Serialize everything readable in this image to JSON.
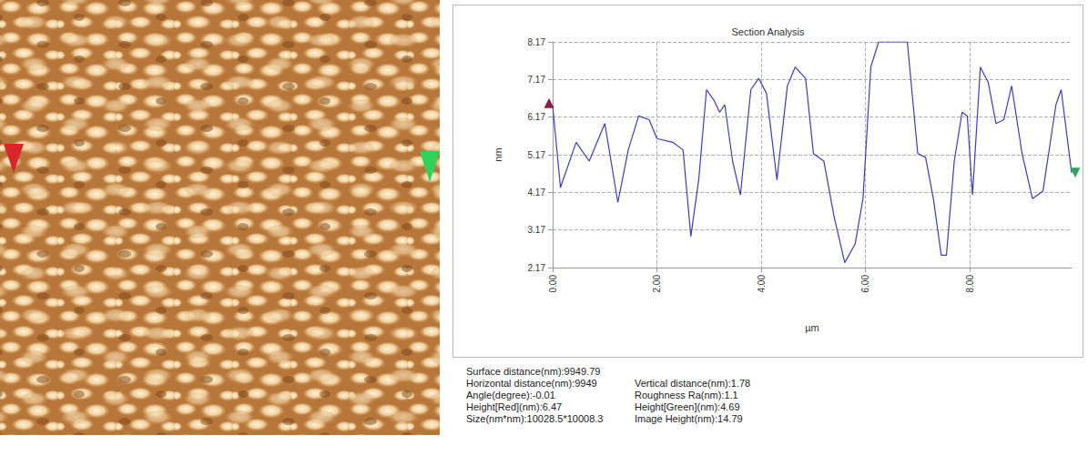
{
  "chart_data": {
    "type": "line",
    "title": "Section Analysis",
    "x_label": "µm",
    "y_label": "nm",
    "x": [
      0,
      0.15,
      0.45,
      0.7,
      1.0,
      1.25,
      1.45,
      1.65,
      1.85,
      2.0,
      2.3,
      2.5,
      2.65,
      2.8,
      2.95,
      3.1,
      3.2,
      3.3,
      3.45,
      3.6,
      3.8,
      3.95,
      4.1,
      4.3,
      4.5,
      4.65,
      4.85,
      5.0,
      5.2,
      5.4,
      5.6,
      5.8,
      5.95,
      6.1,
      6.25,
      6.8,
      7.0,
      7.15,
      7.3,
      7.45,
      7.55,
      7.7,
      7.85,
      7.95,
      8.05,
      8.2,
      8.35,
      8.5,
      8.65,
      8.8,
      9.0,
      9.2,
      9.4,
      9.65,
      9.75,
      9.95
    ],
    "values": [
      6.47,
      4.3,
      5.5,
      5.0,
      6.0,
      3.9,
      5.3,
      6.2,
      6.1,
      5.6,
      5.5,
      5.3,
      3.0,
      4.5,
      6.9,
      6.6,
      6.3,
      6.5,
      5.0,
      4.1,
      6.9,
      7.2,
      6.8,
      4.5,
      7.0,
      7.5,
      7.2,
      5.2,
      5.0,
      3.5,
      2.3,
      2.8,
      4.0,
      7.5,
      8.17,
      8.17,
      5.2,
      5.1,
      4.0,
      2.5,
      2.5,
      5.0,
      6.3,
      6.2,
      4.1,
      7.5,
      7.1,
      6.0,
      6.1,
      7.0,
      5.2,
      4.0,
      4.2,
      6.5,
      6.9,
      4.69
    ],
    "color": "#3a3ad0",
    "xlim": [
      0,
      9.95
    ],
    "xticks": [
      {
        "value": 0,
        "label": "0.00"
      },
      {
        "value": 2,
        "label": "2.00"
      },
      {
        "value": 4,
        "label": "4.00"
      },
      {
        "value": 6,
        "label": "6.00"
      },
      {
        "value": 8,
        "label": "8.00"
      }
    ],
    "ylim": [
      2.17,
      8.17
    ],
    "yticks": [
      2.17,
      3.17,
      4.17,
      5.17,
      6.17,
      7.17,
      8.17
    ],
    "grid": true
  },
  "section_info": [
    [
      "Surface distance(nm):9949.79"
    ],
    [
      "Horizontal distance(nm):9949",
      "Vertical distance(nm):1.78"
    ],
    [
      "Angle(degree):-0.01",
      "Roughness Ra(nm):1.1"
    ],
    [
      "Height[Red](nm):6.47",
      "Height[Green](nm):4.69"
    ],
    [
      "Size(nm*nm):10028.5*10008.3",
      "Image Height(nm):14.79"
    ]
  ]
}
